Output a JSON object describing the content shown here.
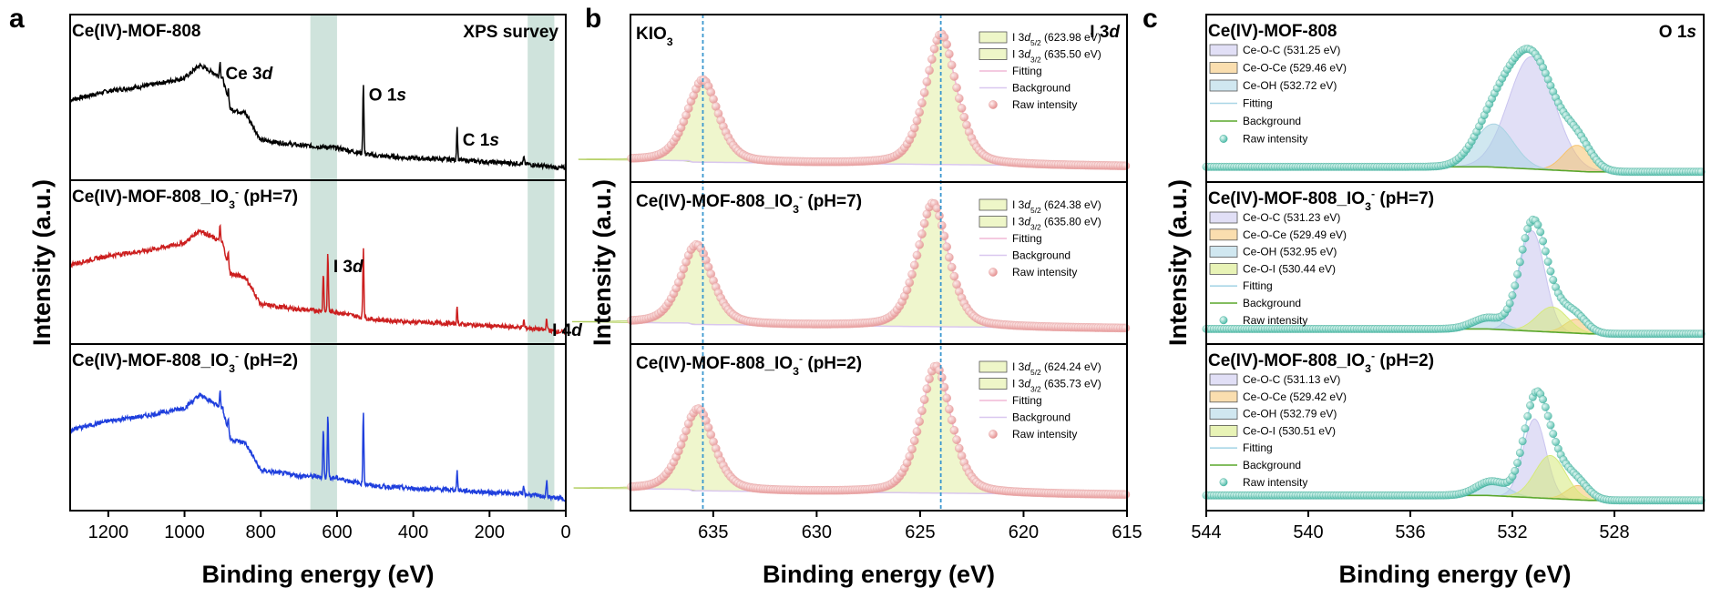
{
  "figure": {
    "panel_letters": [
      "a",
      "b",
      "c"
    ],
    "ylabel": "Intensity (a.u.)",
    "xlabel": "Binding energy (eV)"
  },
  "chart_data": [
    {
      "id": "a",
      "type": "line",
      "xlabel": "Binding energy (eV)",
      "ylabel": "Intensity (a.u.)",
      "xlim": [
        1300,
        0
      ],
      "xticks": [
        1200,
        1000,
        800,
        600,
        400,
        200,
        0
      ],
      "corner_label": "XPS survey",
      "highlight_bands": [
        [
          670,
          600
        ],
        [
          100,
          30
        ]
      ],
      "subpanels": [
        {
          "title": "Ce(IV)-MOF-808",
          "color": "#000000",
          "baseline": [
            [
              1300,
              0.55
            ],
            [
              1200,
              0.62
            ],
            [
              1100,
              0.66
            ],
            [
              1000,
              0.72
            ],
            [
              960,
              0.82
            ],
            [
              900,
              0.72
            ],
            [
              880,
              0.48
            ],
            [
              840,
              0.45
            ],
            [
              800,
              0.24
            ],
            [
              700,
              0.2
            ],
            [
              600,
              0.18
            ],
            [
              540,
              0.14
            ],
            [
              500,
              0.12
            ],
            [
              400,
              0.1
            ],
            [
              300,
              0.09
            ],
            [
              200,
              0.07
            ],
            [
              120,
              0.06
            ],
            [
              60,
              0.04
            ],
            [
              0,
              0.02
            ]
          ],
          "peaks": [
            {
              "x": 907,
              "h": 0.12,
              "label": "Ce 3d"
            },
            {
              "x": 885,
              "h": 0.1
            },
            {
              "x": 531,
              "h": 0.55,
              "label": "O 1s"
            },
            {
              "x": 285,
              "h": 0.25,
              "label": "C 1s"
            },
            {
              "x": 110,
              "h": 0.05
            }
          ]
        },
        {
          "title": "Ce(IV)-MOF-808_IO3- (pH=7)",
          "color": "#cc1f1f",
          "baseline": [
            [
              1300,
              0.55
            ],
            [
              1200,
              0.62
            ],
            [
              1100,
              0.66
            ],
            [
              1000,
              0.72
            ],
            [
              960,
              0.82
            ],
            [
              900,
              0.72
            ],
            [
              880,
              0.48
            ],
            [
              840,
              0.45
            ],
            [
              800,
              0.24
            ],
            [
              700,
              0.2
            ],
            [
              600,
              0.18
            ],
            [
              540,
              0.14
            ],
            [
              500,
              0.12
            ],
            [
              400,
              0.1
            ],
            [
              300,
              0.09
            ],
            [
              200,
              0.07
            ],
            [
              120,
              0.06
            ],
            [
              60,
              0.04
            ],
            [
              0,
              0.02
            ]
          ],
          "peaks": [
            {
              "x": 907,
              "h": 0.12
            },
            {
              "x": 885,
              "h": 0.1
            },
            {
              "x": 636,
              "h": 0.3
            },
            {
              "x": 624,
              "h": 0.45,
              "label": "I 3d"
            },
            {
              "x": 531,
              "h": 0.55
            },
            {
              "x": 285,
              "h": 0.12
            },
            {
              "x": 110,
              "h": 0.06
            },
            {
              "x": 50,
              "h": 0.1,
              "label": "I 4d"
            }
          ]
        },
        {
          "title": "Ce(IV)-MOF-808_IO3- (pH=2)",
          "color": "#1f3fdd",
          "baseline": [
            [
              1300,
              0.55
            ],
            [
              1200,
              0.62
            ],
            [
              1100,
              0.66
            ],
            [
              1000,
              0.72
            ],
            [
              960,
              0.82
            ],
            [
              900,
              0.72
            ],
            [
              880,
              0.48
            ],
            [
              840,
              0.45
            ],
            [
              800,
              0.24
            ],
            [
              700,
              0.2
            ],
            [
              600,
              0.18
            ],
            [
              540,
              0.14
            ],
            [
              500,
              0.12
            ],
            [
              400,
              0.1
            ],
            [
              300,
              0.09
            ],
            [
              200,
              0.07
            ],
            [
              120,
              0.06
            ],
            [
              60,
              0.04
            ],
            [
              0,
              0.02
            ]
          ],
          "peaks": [
            {
              "x": 907,
              "h": 0.12
            },
            {
              "x": 885,
              "h": 0.1
            },
            {
              "x": 636,
              "h": 0.38
            },
            {
              "x": 624,
              "h": 0.5
            },
            {
              "x": 531,
              "h": 0.55
            },
            {
              "x": 285,
              "h": 0.15
            },
            {
              "x": 110,
              "h": 0.06
            },
            {
              "x": 50,
              "h": 0.12
            }
          ]
        }
      ]
    },
    {
      "id": "b",
      "type": "line",
      "xlabel": "Binding energy (eV)",
      "ylabel": "Intensity (a.u.)",
      "xlim": [
        639,
        615
      ],
      "xticks": [
        635,
        630,
        625,
        620,
        615
      ],
      "corner_label": "I 3d",
      "reference_lines": [
        635.5,
        624.0
      ],
      "subpanels": [
        {
          "title": "KIO3",
          "legend": [
            "I 3d5/2 (623.98 eV)",
            "I 3d3/2 (635.50 eV)",
            "Fitting",
            "Background",
            "Raw intensity"
          ],
          "peaks": [
            {
              "x": 623.98,
              "h": 0.95,
              "w": 0.75
            },
            {
              "x": 635.5,
              "h": 0.6,
              "w": 0.75
            }
          ]
        },
        {
          "title": "Ce(IV)-MOF-808_IO3- (pH=7)",
          "legend": [
            "I 3d5/2 (624.38 eV)",
            "I 3d3/2 (635.80 eV)",
            "Fitting",
            "Background",
            "Raw intensity"
          ],
          "peaks": [
            {
              "x": 624.38,
              "h": 0.93,
              "w": 0.75
            },
            {
              "x": 635.8,
              "h": 0.6,
              "w": 0.75
            }
          ]
        },
        {
          "title": "Ce(IV)-MOF-808_IO3- (pH=2)",
          "legend": [
            "I 3d5/2 (624.24 eV)",
            "I 3d3/2 (635.73 eV)",
            "Fitting",
            "Background",
            "Raw intensity"
          ],
          "peaks": [
            {
              "x": 624.24,
              "h": 0.93,
              "w": 0.75
            },
            {
              "x": 635.73,
              "h": 0.6,
              "w": 0.75
            }
          ]
        }
      ]
    },
    {
      "id": "c",
      "type": "line",
      "xlabel": "Binding energy (eV)",
      "ylabel": "Intensity (a.u.)",
      "xlim": [
        544,
        524.5
      ],
      "xticks": [
        544,
        540,
        536,
        532,
        528
      ],
      "corner_label": "O 1s",
      "subpanels": [
        {
          "title": "Ce(IV)-MOF-808",
          "legend": [
            "Ce-O-C (531.25 eV)",
            "Ce-O-Ce (529.46 eV)",
            "Ce-OH (532.72 eV)",
            "Fitting",
            "Background",
            "Raw intensity"
          ],
          "components": [
            {
              "name": "Ce-O-C",
              "x": 531.25,
              "h": 0.78,
              "w": 0.9
            },
            {
              "name": "Ce-O-Ce",
              "x": 529.46,
              "h": 0.18,
              "w": 0.55
            },
            {
              "name": "Ce-OH",
              "x": 532.72,
              "h": 0.3,
              "w": 0.75
            }
          ]
        },
        {
          "title": "Ce(IV)-MOF-808_IO3- (pH=7)",
          "legend": [
            "Ce-O-C (531.23 eV)",
            "Ce-O-Ce (529.49 eV)",
            "Ce-OH (532.95 eV)",
            "Ce-O-I (530.44 eV)",
            "Fitting",
            "Background",
            "Raw intensity"
          ],
          "components": [
            {
              "name": "Ce-O-C",
              "x": 531.23,
              "h": 0.72,
              "w": 0.5
            },
            {
              "name": "Ce-O-Ce",
              "x": 529.49,
              "h": 0.1,
              "w": 0.45
            },
            {
              "name": "Ce-OH",
              "x": 532.95,
              "h": 0.08,
              "w": 0.6
            },
            {
              "name": "Ce-O-I",
              "x": 530.44,
              "h": 0.18,
              "w": 0.6
            }
          ]
        },
        {
          "title": "Ce(IV)-MOF-808_IO3- (pH=2)",
          "legend": [
            "Ce-O-C (531.13 eV)",
            "Ce-O-Ce (529.42 eV)",
            "Ce-OH (532.79 eV)",
            "Ce-O-I (530.51 eV)",
            "Fitting",
            "Background",
            "Raw intensity"
          ],
          "components": [
            {
              "name": "Ce-O-C",
              "x": 531.13,
              "h": 0.55,
              "w": 0.45
            },
            {
              "name": "Ce-O-Ce",
              "x": 529.42,
              "h": 0.1,
              "w": 0.45
            },
            {
              "name": "Ce-OH",
              "x": 532.79,
              "h": 0.1,
              "w": 0.6
            },
            {
              "name": "Ce-O-I",
              "x": 530.51,
              "h": 0.3,
              "w": 0.6
            }
          ]
        }
      ]
    }
  ],
  "colors": {
    "band": "#cfe3dc",
    "refline": "#3a97cf",
    "b_peak_fill": "#eef6c8",
    "b_peak_stroke": "#a7c74b",
    "b_raw": "#ef9d9d",
    "b_fit": "#f0b8d6",
    "b_bg": "#d9c7ef",
    "c_ceoc": "#c9c4ef",
    "c_ceoce": "#f6c36d",
    "c_ceoh": "#a9d3e3",
    "c_ceoi": "#d6ea7a",
    "c_fit": "#a9d6e6",
    "c_bg": "#5aa72c",
    "c_raw": "#58c7b6"
  }
}
